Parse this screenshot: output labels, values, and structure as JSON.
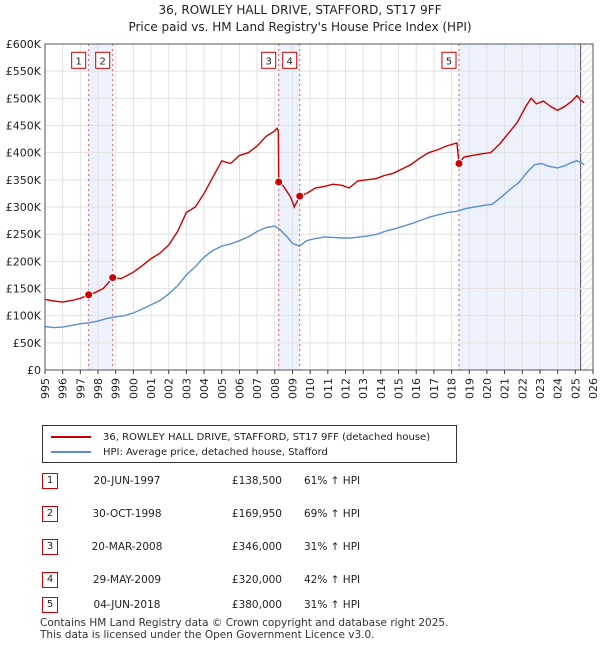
{
  "title_line1": "36, ROWLEY HALL DRIVE, STAFFORD, ST17 9FF",
  "title_line2": "Price paid vs. HM Land Registry's House Price Index (HPI)",
  "chart_data": {
    "type": "line",
    "ylim": [
      0,
      600000
    ],
    "xlim": [
      1995,
      2026
    ],
    "y_ticks": [
      {
        "value": 0,
        "label": "£0"
      },
      {
        "value": 50000,
        "label": "£50K"
      },
      {
        "value": 100000,
        "label": "£100K"
      },
      {
        "value": 150000,
        "label": "£150K"
      },
      {
        "value": 200000,
        "label": "£200K"
      },
      {
        "value": 250000,
        "label": "£250K"
      },
      {
        "value": 300000,
        "label": "£300K"
      },
      {
        "value": 350000,
        "label": "£350K"
      },
      {
        "value": 400000,
        "label": "£400K"
      },
      {
        "value": 450000,
        "label": "£450K"
      },
      {
        "value": 500000,
        "label": "£500K"
      },
      {
        "value": 550000,
        "label": "£550K"
      },
      {
        "value": 600000,
        "label": "£600K"
      }
    ],
    "x_ticks": [
      "1995",
      "1996",
      "1997",
      "1998",
      "1999",
      "2000",
      "2001",
      "2002",
      "2003",
      "2004",
      "2005",
      "2006",
      "2007",
      "2008",
      "2009",
      "2010",
      "2011",
      "2012",
      "2013",
      "2014",
      "2015",
      "2016",
      "2017",
      "2018",
      "2019",
      "2020",
      "2021",
      "2022",
      "2023",
      "2024",
      "2025",
      "2026"
    ],
    "grid": true,
    "shaded_ranges": [
      [
        1997.47,
        1998.83
      ],
      [
        2008.22,
        2009.41
      ],
      [
        2018.42,
        2025.3
      ]
    ],
    "series": [
      {
        "name": "36, ROWLEY HALL DRIVE, STAFFORD, ST17 9FF (detached house)",
        "color": "#cc0000",
        "points": [
          [
            1995.0,
            130000
          ],
          [
            1995.5,
            127000
          ],
          [
            1996.0,
            125000
          ],
          [
            1996.5,
            128000
          ],
          [
            1997.0,
            132000
          ],
          [
            1997.47,
            138500
          ],
          [
            1997.8,
            142000
          ],
          [
            1998.3,
            150000
          ],
          [
            1998.83,
            169950
          ],
          [
            1999.3,
            168000
          ],
          [
            2000.0,
            180000
          ],
          [
            2000.5,
            192000
          ],
          [
            2001.0,
            205000
          ],
          [
            2001.5,
            215000
          ],
          [
            2002.0,
            230000
          ],
          [
            2002.5,
            255000
          ],
          [
            2003.0,
            290000
          ],
          [
            2003.5,
            300000
          ],
          [
            2004.0,
            325000
          ],
          [
            2004.5,
            355000
          ],
          [
            2005.0,
            385000
          ],
          [
            2005.5,
            380000
          ],
          [
            2006.0,
            395000
          ],
          [
            2006.5,
            400000
          ],
          [
            2007.0,
            412000
          ],
          [
            2007.5,
            430000
          ],
          [
            2008.0,
            440000
          ],
          [
            2008.12,
            445000
          ],
          [
            2008.2,
            440000
          ],
          [
            2008.22,
            346000
          ],
          [
            2008.5,
            338000
          ],
          [
            2008.9,
            318000
          ],
          [
            2009.1,
            300000
          ],
          [
            2009.41,
            320000
          ],
          [
            2009.8,
            325000
          ],
          [
            2010.3,
            335000
          ],
          [
            2010.8,
            338000
          ],
          [
            2011.3,
            342000
          ],
          [
            2011.8,
            340000
          ],
          [
            2012.2,
            335000
          ],
          [
            2012.7,
            348000
          ],
          [
            2013.2,
            350000
          ],
          [
            2013.7,
            352000
          ],
          [
            2014.2,
            358000
          ],
          [
            2014.7,
            362000
          ],
          [
            2015.2,
            370000
          ],
          [
            2015.7,
            378000
          ],
          [
            2016.2,
            390000
          ],
          [
            2016.7,
            400000
          ],
          [
            2017.2,
            405000
          ],
          [
            2017.7,
            412000
          ],
          [
            2018.0,
            415000
          ],
          [
            2018.3,
            418000
          ],
          [
            2018.42,
            380000
          ],
          [
            2018.7,
            392000
          ],
          [
            2019.2,
            395000
          ],
          [
            2019.7,
            398000
          ],
          [
            2020.2,
            400000
          ],
          [
            2020.7,
            415000
          ],
          [
            2021.2,
            435000
          ],
          [
            2021.7,
            455000
          ],
          [
            2022.2,
            485000
          ],
          [
            2022.5,
            500000
          ],
          [
            2022.8,
            490000
          ],
          [
            2023.2,
            495000
          ],
          [
            2023.6,
            485000
          ],
          [
            2024.0,
            478000
          ],
          [
            2024.4,
            485000
          ],
          [
            2024.8,
            495000
          ],
          [
            2025.1,
            505000
          ],
          [
            2025.3,
            497000
          ],
          [
            2025.5,
            492000
          ]
        ]
      },
      {
        "name": "HPI: Average price, detached house, Stafford",
        "color": "#5b8fd0",
        "points": [
          [
            1995.0,
            80000
          ],
          [
            1995.5,
            78000
          ],
          [
            1996.0,
            79000
          ],
          [
            1996.5,
            82000
          ],
          [
            1997.0,
            85000
          ],
          [
            1997.5,
            87000
          ],
          [
            1998.0,
            90000
          ],
          [
            1998.5,
            95000
          ],
          [
            1999.0,
            98000
          ],
          [
            1999.5,
            100000
          ],
          [
            2000.0,
            105000
          ],
          [
            2000.5,
            112000
          ],
          [
            2001.0,
            120000
          ],
          [
            2001.5,
            128000
          ],
          [
            2002.0,
            140000
          ],
          [
            2002.5,
            155000
          ],
          [
            2003.0,
            175000
          ],
          [
            2003.5,
            190000
          ],
          [
            2004.0,
            208000
          ],
          [
            2004.5,
            220000
          ],
          [
            2005.0,
            228000
          ],
          [
            2005.5,
            232000
          ],
          [
            2006.0,
            238000
          ],
          [
            2006.5,
            245000
          ],
          [
            2007.0,
            255000
          ],
          [
            2007.5,
            262000
          ],
          [
            2008.0,
            265000
          ],
          [
            2008.3,
            258000
          ],
          [
            2008.7,
            245000
          ],
          [
            2009.0,
            233000
          ],
          [
            2009.4,
            228000
          ],
          [
            2009.8,
            238000
          ],
          [
            2010.3,
            242000
          ],
          [
            2010.8,
            245000
          ],
          [
            2011.3,
            244000
          ],
          [
            2011.8,
            243000
          ],
          [
            2012.3,
            243000
          ],
          [
            2012.8,
            245000
          ],
          [
            2013.3,
            247000
          ],
          [
            2013.8,
            250000
          ],
          [
            2014.3,
            256000
          ],
          [
            2014.8,
            260000
          ],
          [
            2015.3,
            265000
          ],
          [
            2015.8,
            270000
          ],
          [
            2016.3,
            276000
          ],
          [
            2016.8,
            282000
          ],
          [
            2017.3,
            286000
          ],
          [
            2017.8,
            290000
          ],
          [
            2018.3,
            292000
          ],
          [
            2018.8,
            297000
          ],
          [
            2019.3,
            300000
          ],
          [
            2019.8,
            303000
          ],
          [
            2020.3,
            305000
          ],
          [
            2020.8,
            318000
          ],
          [
            2021.3,
            332000
          ],
          [
            2021.8,
            345000
          ],
          [
            2022.3,
            365000
          ],
          [
            2022.7,
            378000
          ],
          [
            2023.1,
            380000
          ],
          [
            2023.5,
            375000
          ],
          [
            2024.0,
            372000
          ],
          [
            2024.4,
            376000
          ],
          [
            2024.8,
            382000
          ],
          [
            2025.1,
            385000
          ],
          [
            2025.5,
            378000
          ]
        ]
      }
    ],
    "transactions": [
      {
        "id": "1",
        "x": 1997.47,
        "price": 138500
      },
      {
        "id": "2",
        "x": 1998.83,
        "price": 169950
      },
      {
        "id": "3",
        "x": 2008.22,
        "price": 346000
      },
      {
        "id": "4",
        "x": 2009.41,
        "price": 320000
      },
      {
        "id": "5",
        "x": 2018.42,
        "price": 380000
      }
    ],
    "vertical_marker_label_value": 570000,
    "projection_start": 2025.3
  },
  "legend": {
    "items": [
      {
        "label": "36, ROWLEY HALL DRIVE, STAFFORD, ST17 9FF (detached house)",
        "color": "#cc0000"
      },
      {
        "label": "HPI: Average price, detached house, Stafford",
        "color": "#5b8fd0"
      }
    ]
  },
  "table": {
    "rows": [
      {
        "num": "1",
        "date": "20-JUN-1997",
        "price": "£138,500",
        "hpi": "61% ↑ HPI"
      },
      {
        "num": "2",
        "date": "30-OCT-1998",
        "price": "£169,950",
        "hpi": "69% ↑ HPI"
      },
      {
        "num": "3",
        "date": "20-MAR-2008",
        "price": "£346,000",
        "hpi": "31% ↑ HPI"
      },
      {
        "num": "4",
        "date": "29-MAY-2009",
        "price": "£320,000",
        "hpi": "42% ↑ HPI"
      },
      {
        "num": "5",
        "date": "04-JUN-2018",
        "price": "£380,000",
        "hpi": "31% ↑ HPI"
      }
    ]
  },
  "footer": {
    "line1": "Contains HM Land Registry data © Crown copyright and database right 2025.",
    "line2": "This data is licensed under the Open Government Licence v3.0."
  }
}
